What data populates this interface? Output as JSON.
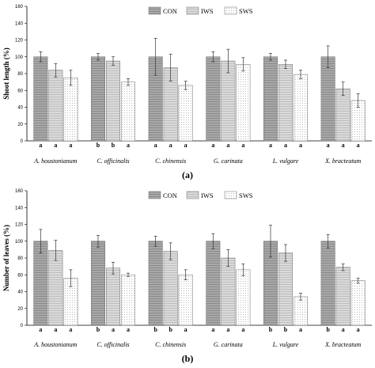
{
  "colors": {
    "CON": "#a0a0a0",
    "IWS": "#d4d4d4",
    "SWS": "#f4f4f4"
  },
  "chart_data": [
    {
      "type": "bar",
      "panel_label": "(a)",
      "ylabel": "Shoot length (%)",
      "ylim": [
        0,
        160
      ],
      "yticks": [
        0,
        20,
        40,
        60,
        80,
        100,
        120,
        140,
        160
      ],
      "legend": [
        "CON",
        "IWS",
        "SWS"
      ],
      "legend_position": "top-right",
      "categories": [
        "A. houstonianum",
        "C. officinalis",
        "C. chinensis",
        "G. carinata",
        "L. vulgare",
        "X. bracteatum"
      ],
      "series": [
        {
          "name": "CON",
          "values": [
            100,
            100,
            100,
            100,
            100,
            100
          ],
          "errors": [
            6,
            4,
            22,
            6,
            4,
            13
          ]
        },
        {
          "name": "IWS",
          "values": [
            84,
            95,
            87,
            95,
            91,
            62
          ],
          "errors": [
            8,
            5,
            16,
            14,
            5,
            8
          ]
        },
        {
          "name": "SWS",
          "values": [
            75,
            70,
            66,
            91,
            79,
            48
          ],
          "errors": [
            9,
            4,
            5,
            8,
            5,
            8
          ]
        }
      ],
      "letters": [
        [
          "a",
          "a",
          "a"
        ],
        [
          "b",
          "b",
          "a"
        ],
        [
          "a",
          "a",
          "a"
        ],
        [
          "a",
          "a",
          "a"
        ],
        [
          "a",
          "a",
          "a"
        ],
        [
          "a",
          "a",
          "a"
        ]
      ]
    },
    {
      "type": "bar",
      "panel_label": "(b)",
      "ylabel": "Number of leaves (%)",
      "ylim": [
        0,
        160
      ],
      "yticks": [
        0,
        20,
        40,
        60,
        80,
        100,
        120,
        140,
        160
      ],
      "legend": [
        "CON",
        "IWS",
        "SWS"
      ],
      "legend_position": "top-right",
      "categories": [
        "A. houstonianum",
        "C. officinalis",
        "C. chinensis",
        "G. carinata",
        "L. vulgare",
        "X. bracteatum"
      ],
      "series": [
        {
          "name": "CON",
          "values": [
            100,
            100,
            100,
            100,
            100,
            100
          ],
          "errors": [
            14,
            7,
            6,
            9,
            19,
            8
          ]
        },
        {
          "name": "IWS",
          "values": [
            89,
            68,
            88,
            80,
            86,
            69
          ],
          "errors": [
            12,
            7,
            10,
            10,
            10,
            4
          ]
        },
        {
          "name": "SWS",
          "values": [
            56,
            60,
            60,
            66,
            34,
            53
          ],
          "errors": [
            10,
            2,
            6,
            7,
            4,
            3
          ]
        }
      ],
      "letters": [
        [
          "a",
          "a",
          "a"
        ],
        [
          "b",
          "a",
          "a"
        ],
        [
          "b",
          "b",
          "a"
        ],
        [
          "a",
          "a",
          "a"
        ],
        [
          "b",
          "b",
          "a"
        ],
        [
          "b",
          "a",
          "a"
        ]
      ]
    }
  ]
}
